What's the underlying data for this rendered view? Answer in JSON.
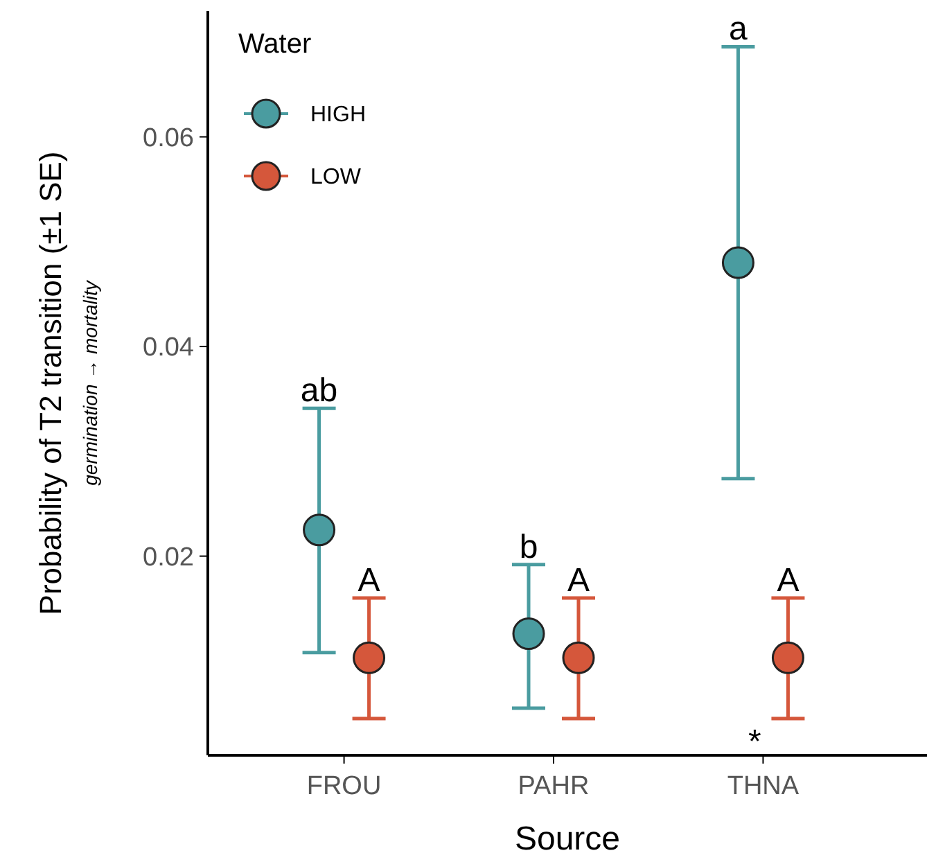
{
  "chart_data": {
    "type": "scatter",
    "xlabel": "Source",
    "ylabel": "Probability of T2 transition (±1 SE)",
    "categories": [
      "FROU",
      "PAHR",
      "THNA"
    ],
    "series": [
      {
        "name": "HIGH",
        "color": "#4a9ca0",
        "values": [
          0.0225,
          0.0126,
          0.048
        ],
        "errors": [
          [
            0.0108,
            0.0341
          ],
          [
            0.0055,
            0.0192
          ],
          [
            0.0274,
            0.0686
          ]
        ]
      },
      {
        "name": "LOW",
        "color": "#d5573b",
        "values": [
          0.0103,
          0.0103,
          0.0103
        ],
        "errors": [
          [
            0.0045,
            0.016
          ],
          [
            0.0045,
            0.016
          ],
          [
            0.0045,
            0.016
          ]
        ]
      }
    ],
    "ylim": [
      0.001,
      0.072
    ],
    "yticks": [
      0.02,
      0.04,
      0.06
    ],
    "legend": "top left",
    "legend_title": "Water",
    "marker": "circle",
    "grid": false,
    "annotations": [
      "germination → mortality",
      "ab",
      "A",
      "b",
      "A",
      "a",
      "A",
      "*"
    ]
  }
}
